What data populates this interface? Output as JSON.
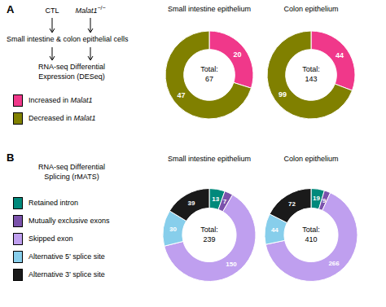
{
  "chart_data": [
    {
      "type": "donut",
      "title": "Small intestine epithelium",
      "categories": [
        "Increased in Malat1",
        "Decreased in Malat1"
      ],
      "values": [
        20,
        47
      ],
      "colors": [
        "#f0388a",
        "#808000"
      ],
      "data_labels": true,
      "legend": "left",
      "annotations": [
        "Total:\n67",
        "A",
        "CTL",
        "Malat1−/−",
        "Small intestine & colon epithelial cells",
        "RNA-seq Differential\nExpression (DESeq)"
      ]
    },
    {
      "type": "donut",
      "title": "Colon epithelium",
      "categories": [
        "Increased in Malat1",
        "Decreased in Malat1"
      ],
      "values": [
        44,
        99
      ],
      "colors": [
        "#f0388a",
        "#808000"
      ],
      "data_labels": true,
      "annotations": [
        "Total:\n143"
      ]
    },
    {
      "type": "donut",
      "title": "Small intestine epithelium",
      "categories": [
        "Retained intron",
        "Mutually exclusive exons",
        "Skipped exon",
        "Alternative 5’ splice site",
        "Alternative 3’ splice site"
      ],
      "values": [
        13,
        7,
        150,
        30,
        39
      ],
      "colors": [
        "#00897b",
        "#7b52ab",
        "#bf9fef",
        "#87ceeb",
        "#1a1a1a"
      ],
      "data_labels": true,
      "legend": "left",
      "annotations": [
        "Total:\n239",
        "B",
        "RNA-seq Differential\nSplicing (rMATS)"
      ]
    },
    {
      "type": "donut",
      "title": "Colon epithelium",
      "categories": [
        "Retained intron",
        "Mutually exclusive exons",
        "Skipped exon",
        "Alternative 5’ splice site",
        "Alternative 3’ splice site"
      ],
      "values": [
        19,
        9,
        266,
        44,
        72
      ],
      "colors": [
        "#00897b",
        "#7b52ab",
        "#bf9fef",
        "#87ceeb",
        "#1a1a1a"
      ],
      "data_labels": true,
      "annotations": [
        "Total:\n410"
      ]
    }
  ]
}
